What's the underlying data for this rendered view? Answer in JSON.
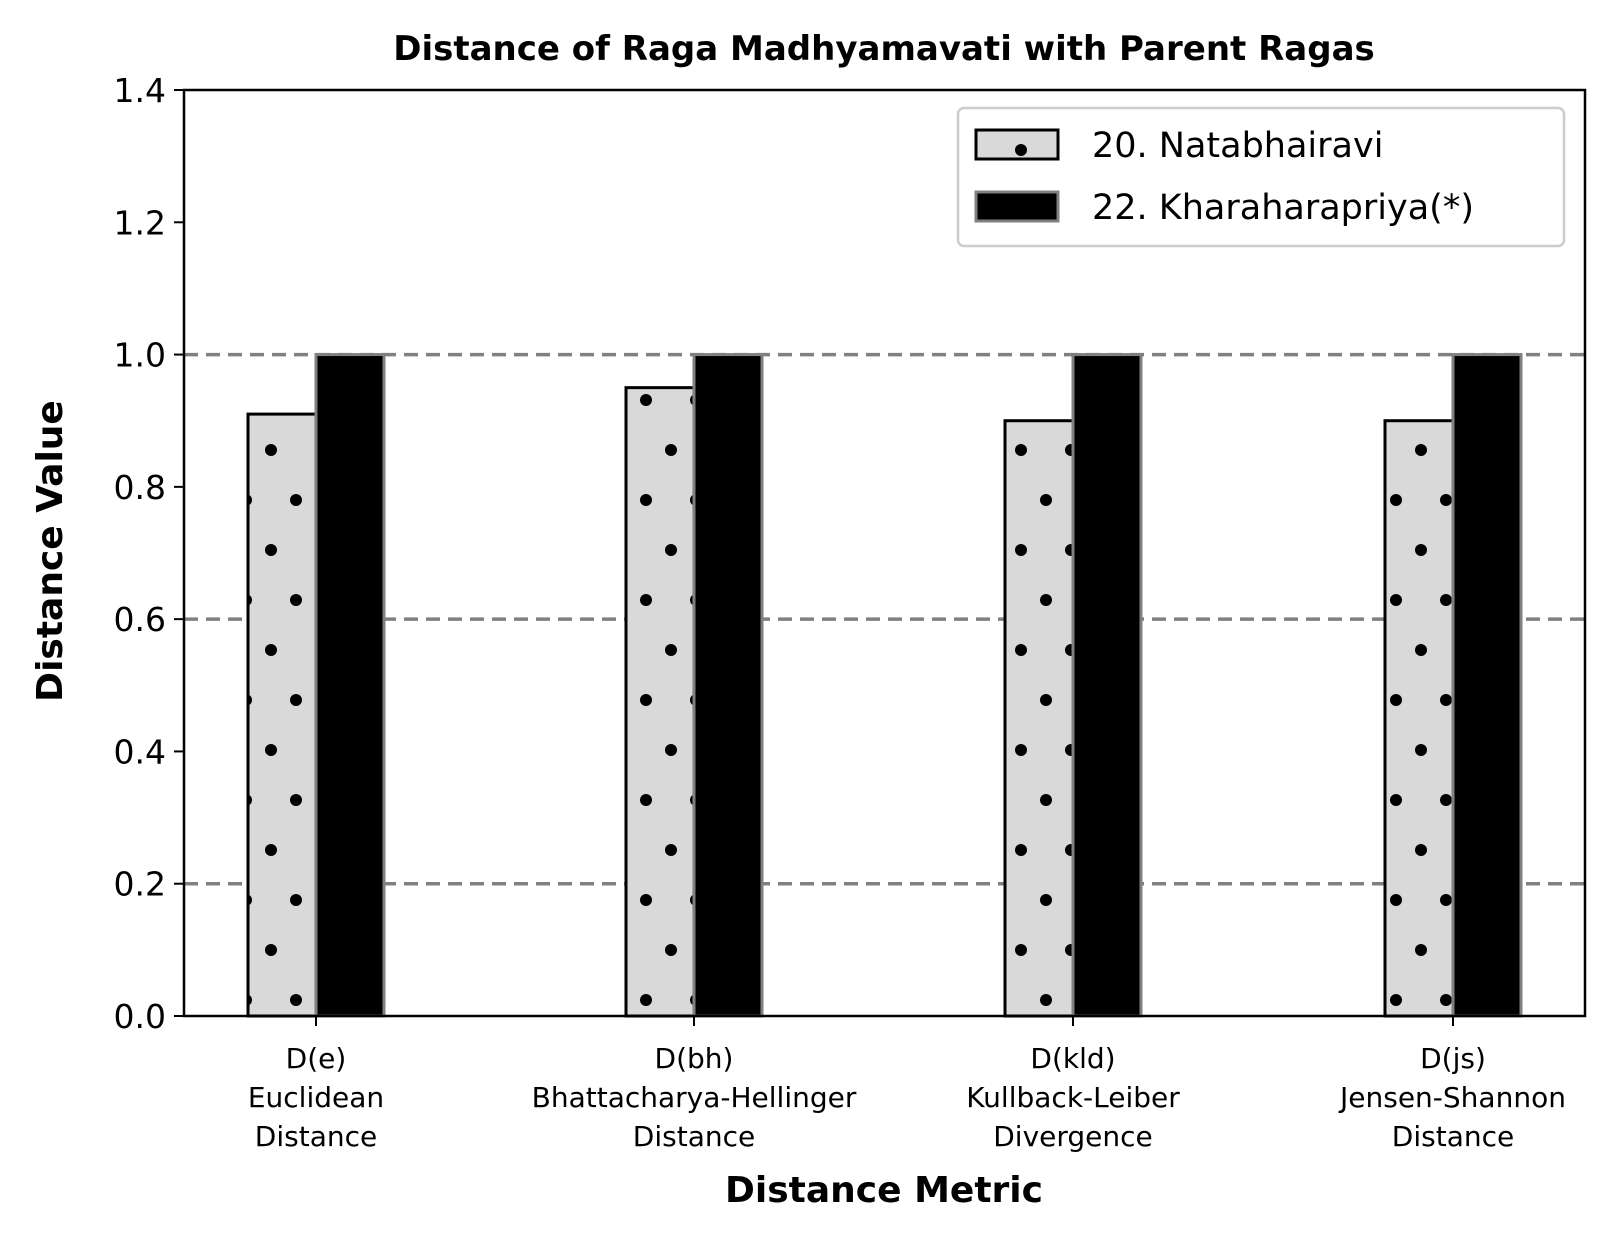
{
  "chart_data": {
    "type": "bar",
    "title": "Distance of Raga Madhyamavati with Parent Ragas",
    "xlabel": "Distance Metric",
    "ylabel": "Distance Value",
    "ylim": [
      0,
      1.4
    ],
    "yticks": [
      "0.0",
      "0.2",
      "0.4",
      "0.6",
      "0.8",
      "1.0",
      "1.2",
      "1.4"
    ],
    "grid": "horizontal dashed at 0.2, 0.6, 1.0",
    "legend_position": "top-right",
    "categories": [
      [
        "D(e)",
        "Euclidean",
        "Distance"
      ],
      [
        "D(bh)",
        "Bhattacharya-Hellinger",
        "Distance"
      ],
      [
        "D(kld)",
        "Kullback-Leiber",
        "Divergence"
      ],
      [
        "D(js)",
        "Jensen-Shannon",
        "Distance"
      ]
    ],
    "series": [
      {
        "name": "20. Natabhairavi",
        "values": [
          0.91,
          0.95,
          0.9,
          0.9
        ],
        "color": "#d9d9d9",
        "hatch": "dots"
      },
      {
        "name": "22. Kharaharapriya(*)",
        "values": [
          1.0,
          1.0,
          1.0,
          1.0
        ],
        "color": "#000000",
        "hatch": "none"
      }
    ]
  }
}
